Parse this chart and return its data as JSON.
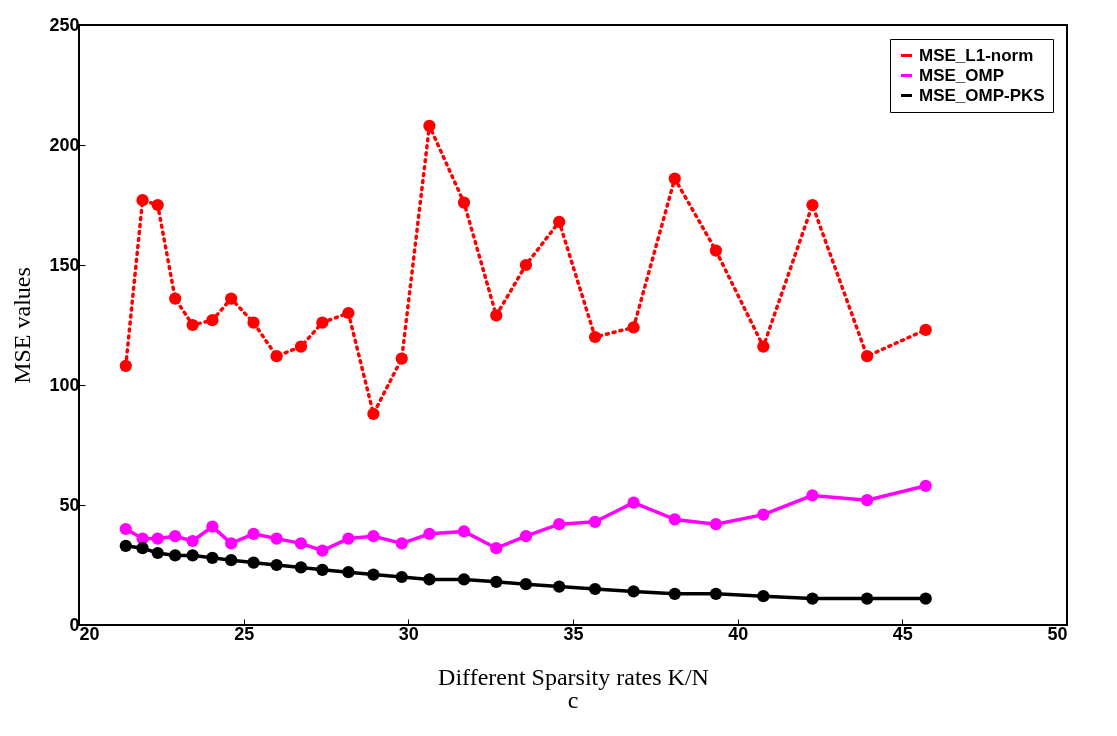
{
  "chart_data": {
    "type": "line",
    "xlabel": "Different Sparsity rates K/N",
    "ylabel": "MSE values",
    "annotations": [
      "c"
    ],
    "x": [
      21.42,
      21.93,
      22.39,
      22.92,
      23.45,
      24.05,
      24.62,
      25.3,
      26.0,
      26.74,
      27.39,
      28.18,
      28.94,
      29.8,
      30.64,
      31.69,
      32.67,
      33.57,
      34.58,
      35.67,
      36.84,
      38.09,
      39.34,
      40.78,
      42.27,
      43.93,
      45.71
    ],
    "series": [
      {
        "name": "MSE_L1-norm",
        "color": "#ff0000",
        "line_style": "dotted",
        "values": [
          108,
          177,
          175,
          136,
          125,
          127,
          136,
          126,
          112,
          116,
          126,
          130,
          88,
          111,
          208,
          176,
          129,
          150,
          168,
          120,
          124,
          186,
          156,
          116,
          175,
          112,
          123
        ]
      },
      {
        "name": "MSE_OMP",
        "color": "#ff00ff",
        "line_style": "solid",
        "values": [
          40,
          36,
          36,
          37,
          35,
          41,
          34,
          38,
          36,
          34,
          31,
          36,
          37,
          34,
          38,
          39,
          32,
          37,
          42,
          43,
          51,
          44,
          42,
          46,
          54,
          52,
          58
        ]
      },
      {
        "name": "MSE_OMP-PKS",
        "color": "#000000",
        "line_style": "solid",
        "values": [
          33,
          32,
          30,
          29,
          29,
          28,
          27,
          26,
          25,
          24,
          23,
          22,
          21,
          20,
          19,
          19,
          18,
          17,
          16,
          15,
          14,
          13,
          13,
          12,
          11,
          11,
          11
        ]
      }
    ],
    "xlim": [
      20,
      50
    ],
    "xticks": [
      20,
      25,
      30,
      35,
      40,
      45,
      50
    ],
    "ylim": [
      0,
      250
    ],
    "yticks": [
      0,
      50,
      100,
      150,
      200,
      250
    ],
    "grid": false,
    "legend": "top right",
    "marker": "circle"
  }
}
